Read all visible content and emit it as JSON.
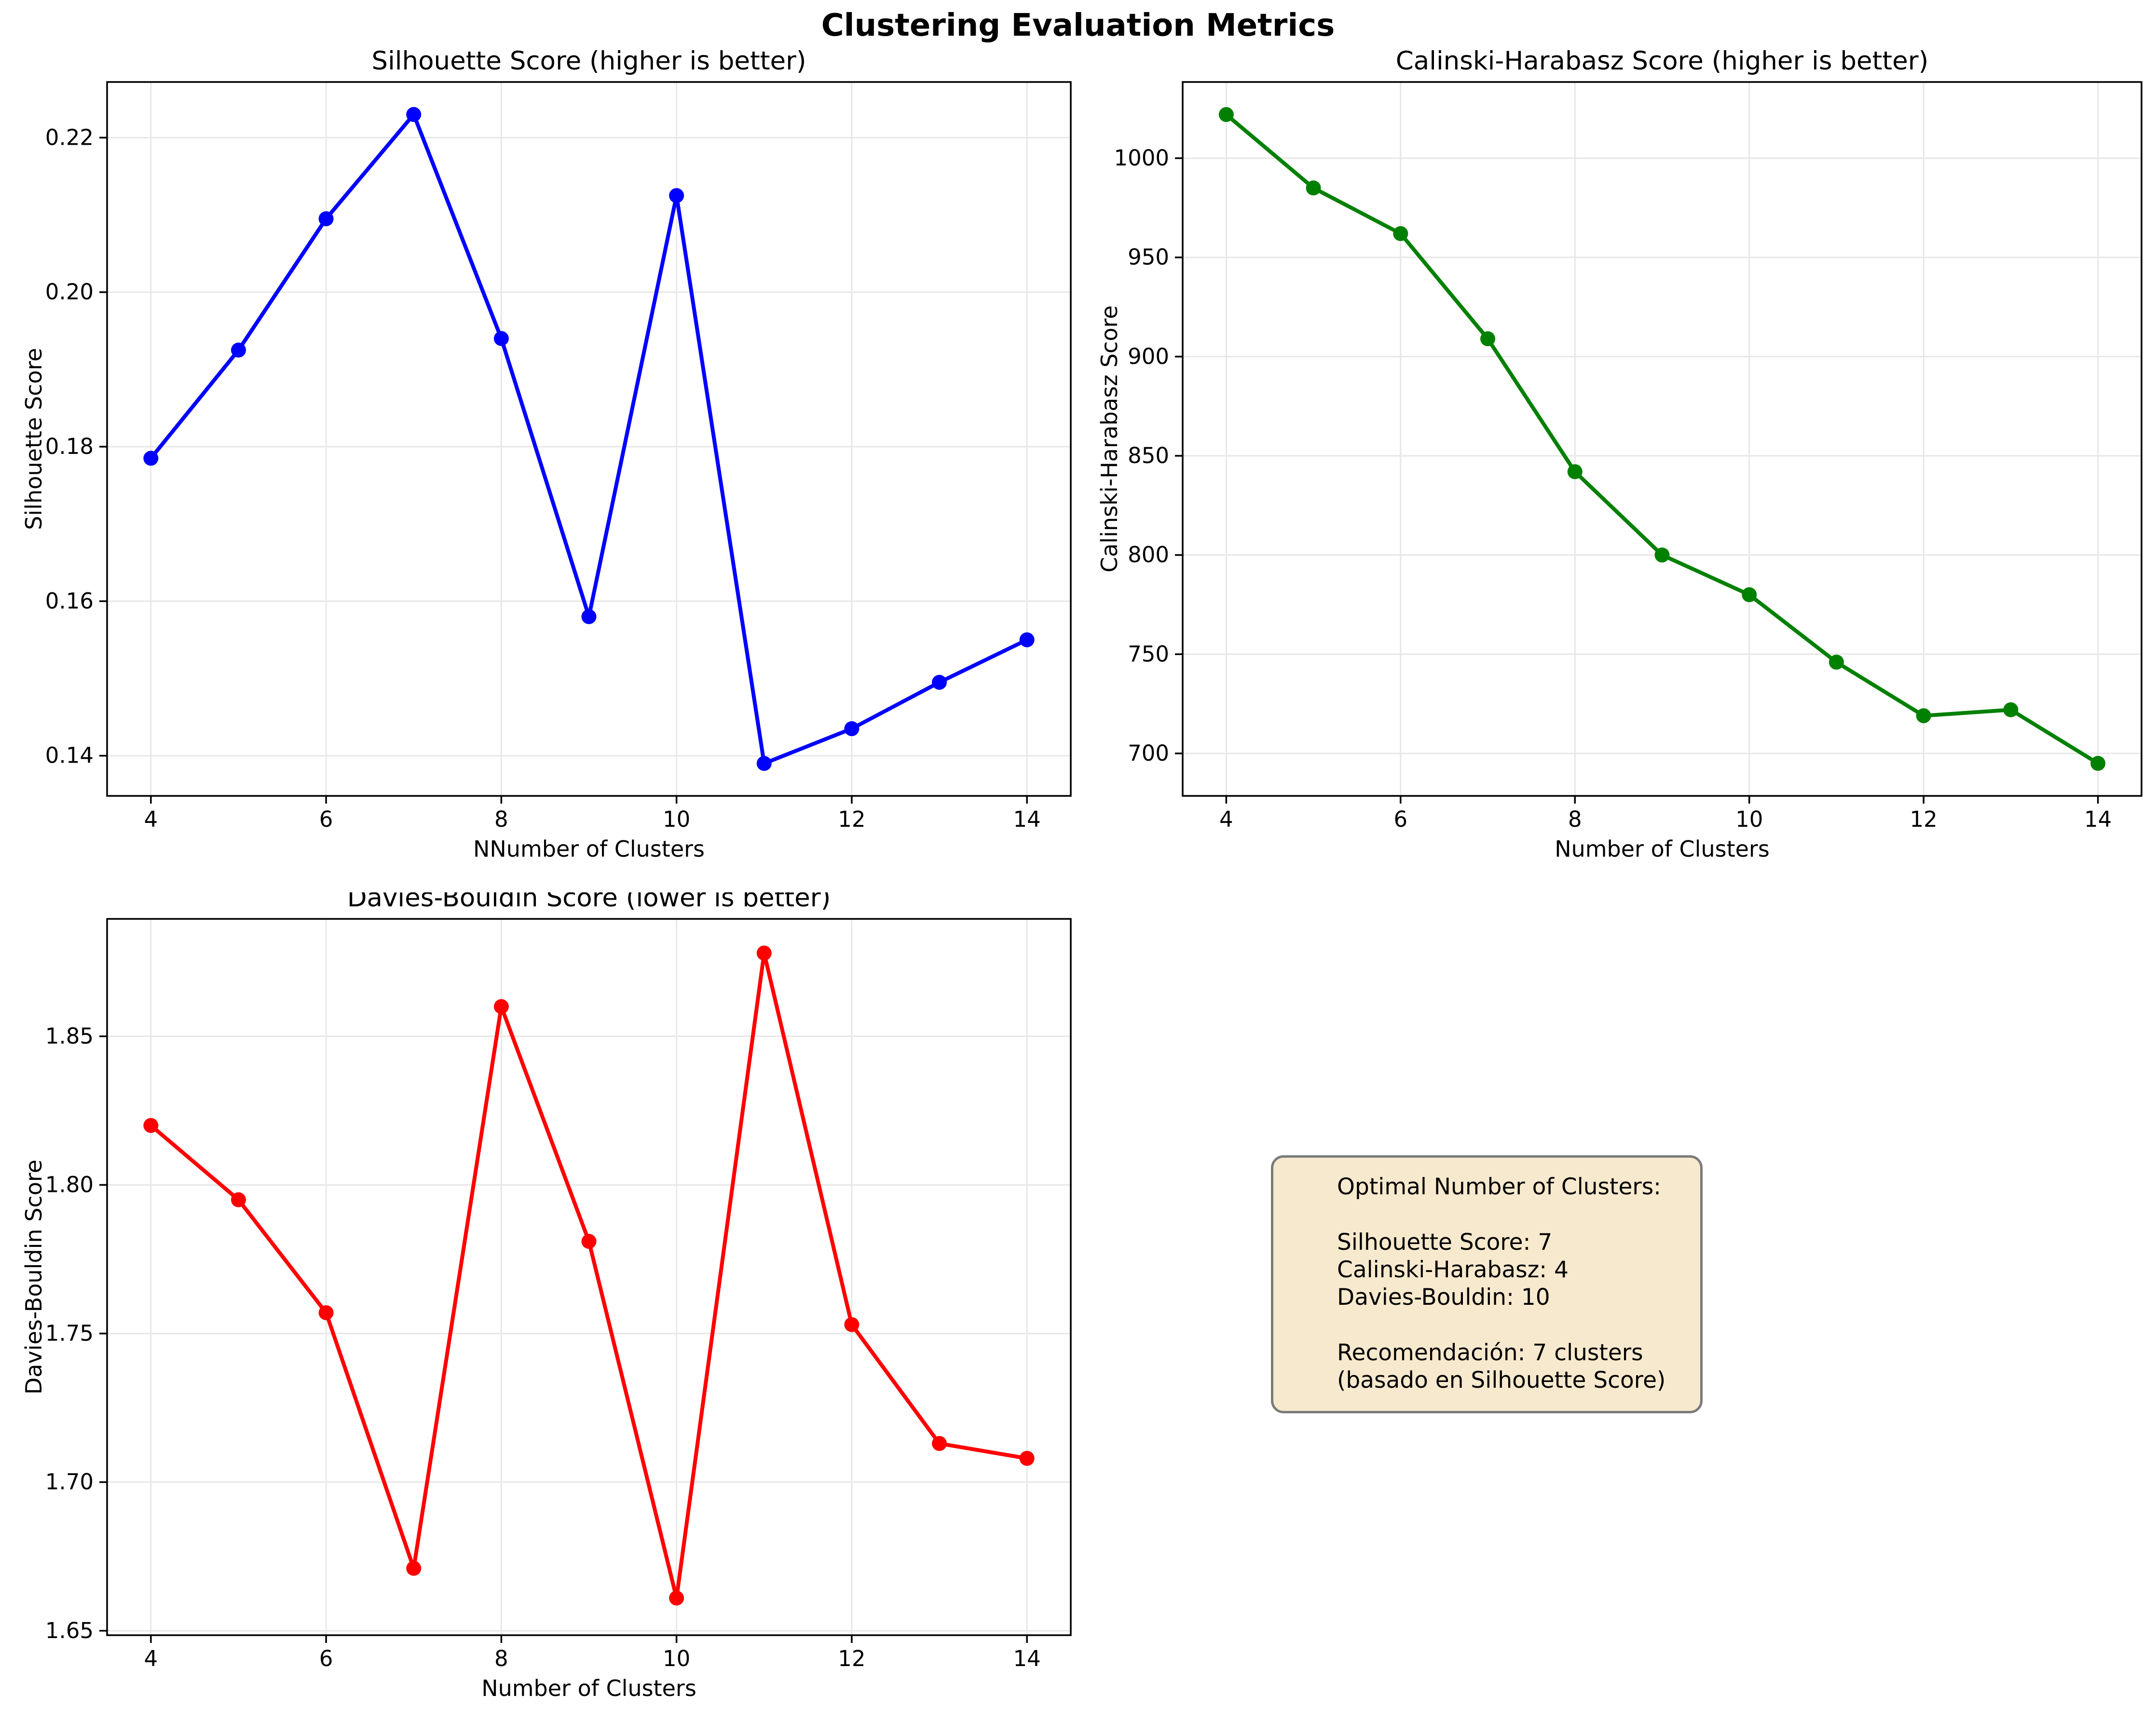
{
  "suptitle": "Clustering Evaluation Metrics",
  "colors": {
    "silhouette_line": "#0000ff",
    "calinski_line": "#008000",
    "davies_line": "#ff0000",
    "grid": "#e7e7e7",
    "spine": "#000000",
    "info_box_background": "#f7e9cd",
    "info_box_border": "#7a7a7a"
  },
  "info_box": {
    "text": "Optimal Number of Clusters:\n\nSilhouette Score: 7\nCalinski-Harabasz: 4\nDavies-Bouldin: 10\n\nRecomendación: 7 clusters\n(basado en Silhouette Score)"
  },
  "chart_data": [
    {
      "id": "silhouette",
      "type": "line",
      "title": "Silhouette Score (higher is better)",
      "xlabel": "NNumber of Clusters",
      "ylabel": "Silhouette Score",
      "color": "#0000ff",
      "grid": true,
      "legend_position": "none",
      "x": [
        4,
        5,
        6,
        7,
        8,
        9,
        10,
        11,
        12,
        13,
        14
      ],
      "values": [
        0.1785,
        0.1925,
        0.2095,
        0.223,
        0.194,
        0.158,
        0.2125,
        0.139,
        0.1435,
        0.1495,
        0.155
      ],
      "xlim": [
        3.5,
        14.5
      ],
      "ylim": [
        0.1348,
        0.2272
      ],
      "xticks": [
        {
          "v": 4,
          "label": "4"
        },
        {
          "v": 6,
          "label": "6"
        },
        {
          "v": 8,
          "label": "8"
        },
        {
          "v": 10,
          "label": "10"
        },
        {
          "v": 12,
          "label": "12"
        },
        {
          "v": 14,
          "label": "14"
        }
      ],
      "yticks": [
        {
          "v": 0.14,
          "label": "0.14"
        },
        {
          "v": 0.16,
          "label": "0.16"
        },
        {
          "v": 0.18,
          "label": "0.18"
        },
        {
          "v": 0.2,
          "label": "0.20"
        },
        {
          "v": 0.22,
          "label": "0.22"
        }
      ]
    },
    {
      "id": "calinski",
      "type": "line",
      "title": "Calinski-Harabasz Score (higher is better)",
      "xlabel": "Number of Clusters",
      "ylabel": "Calinski-Harabasz Score",
      "color": "#008000",
      "grid": true,
      "legend_position": "none",
      "x": [
        4,
        5,
        6,
        7,
        8,
        9,
        10,
        11,
        12,
        13,
        14
      ],
      "values": [
        1022,
        985,
        962,
        909,
        842,
        800,
        780,
        746,
        719,
        722,
        695
      ],
      "xlim": [
        3.5,
        14.5
      ],
      "ylim": [
        678.6,
        1038.4
      ],
      "xticks": [
        {
          "v": 4,
          "label": "4"
        },
        {
          "v": 6,
          "label": "6"
        },
        {
          "v": 8,
          "label": "8"
        },
        {
          "v": 10,
          "label": "10"
        },
        {
          "v": 12,
          "label": "12"
        },
        {
          "v": 14,
          "label": "14"
        }
      ],
      "yticks": [
        {
          "v": 700,
          "label": "700"
        },
        {
          "v": 750,
          "label": "750"
        },
        {
          "v": 800,
          "label": "800"
        },
        {
          "v": 850,
          "label": "850"
        },
        {
          "v": 900,
          "label": "900"
        },
        {
          "v": 950,
          "label": "950"
        },
        {
          "v": 1000,
          "label": "1000"
        }
      ]
    },
    {
      "id": "davies",
      "type": "line",
      "title": "Davies-Bouldin Score (lower is better)",
      "xlabel": "Number of Clusters",
      "ylabel": "Davies-Bouldin Score",
      "color": "#ff0000",
      "grid": true,
      "legend_position": "none",
      "x": [
        4,
        5,
        6,
        7,
        8,
        9,
        10,
        11,
        12,
        13,
        14
      ],
      "values": [
        1.82,
        1.795,
        1.757,
        1.671,
        1.86,
        1.781,
        1.661,
        1.878,
        1.753,
        1.713,
        1.708
      ],
      "xlim": [
        3.5,
        14.5
      ],
      "ylim": [
        1.6485,
        1.8895
      ],
      "xticks": [
        {
          "v": 4,
          "label": "4"
        },
        {
          "v": 6,
          "label": "6"
        },
        {
          "v": 8,
          "label": "8"
        },
        {
          "v": 10,
          "label": "10"
        },
        {
          "v": 12,
          "label": "12"
        },
        {
          "v": 14,
          "label": "14"
        }
      ],
      "yticks": [
        {
          "v": 1.65,
          "label": "1.65"
        },
        {
          "v": 1.7,
          "label": "1.70"
        },
        {
          "v": 1.75,
          "label": "1.75"
        },
        {
          "v": 1.8,
          "label": "1.80"
        },
        {
          "v": 1.85,
          "label": "1.85"
        }
      ]
    }
  ]
}
